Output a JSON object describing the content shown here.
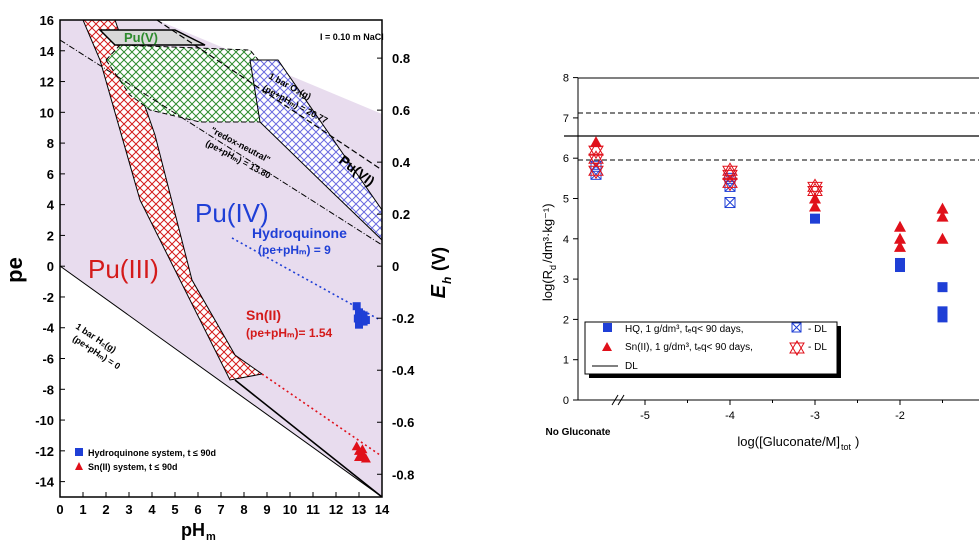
{
  "chart_data": [
    {
      "type": "scatter",
      "title": "",
      "xlabel": "pH",
      "xlabel_sub": "m",
      "ylabel": "pe",
      "y2label": "E",
      "y2label_sub": "h",
      "y2label_unit": "(V)",
      "xlim": [
        0,
        14
      ],
      "ylim": [
        -15,
        16
      ],
      "x_ticks": [
        "0",
        "1",
        "2",
        "3",
        "4",
        "5",
        "6",
        "7",
        "8",
        "9",
        "10",
        "11",
        "12",
        "13",
        "14"
      ],
      "y_ticks": [
        "16",
        "14",
        "12",
        "10",
        "8",
        "6",
        "4",
        "2",
        "0",
        "-2",
        "-4",
        "-6",
        "-8",
        "-10",
        "-12",
        "-14"
      ],
      "y2_ticks": [
        "0.8",
        "0.6",
        "0.4",
        "0.2",
        "0",
        "-0.2",
        "-0.4",
        "-0.6",
        "-0.8"
      ],
      "annotations": {
        "ionic_strength": "I = 0.10 m NaCl",
        "puv": "Pu(V)",
        "puvi": "Pu(VI)",
        "puiv": "Pu(IV)",
        "puiii": "Pu(III)",
        "o2_line": "1 bar O₂(g)",
        "o2_eq": "(pe+pHₘ) = 20.77",
        "redox": "\"redox-neutral\"",
        "redox_eq": "(pe+pHₘ) = 13.80",
        "hq": "Hydroquinone",
        "hq_eq": "(pe+pHₘ) = 9",
        "sn": "Sn(II)",
        "sn_eq": "(pe+pHₘ)= 1.54",
        "h2_line": "1 bar H₂(g)",
        "h2_eq": "(pe+pHₘ) = 0"
      },
      "legend": [
        "Hydroquinone system, t ≤ 90d",
        "Sn(II) system, t ≤ 90d"
      ],
      "series": [
        {
          "name": "Hydroquinone system, t ≤ 90d",
          "marker": "square",
          "color": "#1f3fd6",
          "points": [
            [
              12.9,
              -2.6
            ],
            [
              13.0,
              -3.0
            ],
            [
              13.1,
              -3.3
            ],
            [
              13.2,
              -3.6
            ],
            [
              13.0,
              -3.8
            ],
            [
              13.2,
              -3.2
            ],
            [
              13.3,
              -3.5
            ],
            [
              12.95,
              -3.4
            ]
          ]
        },
        {
          "name": "Sn(II) system, t ≤ 90d",
          "marker": "triangle",
          "color": "#e0101a",
          "points": [
            [
              12.9,
              -11.7
            ],
            [
              13.0,
              -12.0
            ],
            [
              13.1,
              -12.2
            ],
            [
              13.2,
              -12.3
            ],
            [
              13.3,
              -12.5
            ],
            [
              13.0,
              -12.4
            ],
            [
              13.15,
              -11.9
            ]
          ]
        }
      ]
    },
    {
      "type": "scatter",
      "title": "",
      "xlabel": "log([Gluconate/M]",
      "xlabel_sub": "tot",
      "ylabel": "log(R",
      "ylabel_sub": "d",
      "ylabel_rest": "/dm³·kg⁻¹)",
      "xlim": [
        -5.9,
        -1.2
      ],
      "ylim": [
        0,
        8.5
      ],
      "x_ticks": [
        "-5",
        "-4",
        "-3",
        "-2"
      ],
      "y_ticks": [
        "0",
        "1",
        "2",
        "3",
        "4",
        "5",
        "6",
        "7",
        "8"
      ],
      "no_gluconate_label": "No Gluconate",
      "dl_solid": 6.55,
      "dl_dashed_upper": 7.15,
      "dl_dashed_lower": 5.95,
      "legend": [
        "HQ, 1 g/dm³, tₑq< 90 days,",
        "- DL",
        "Sn(II), 1 g/dm³, tₑq< 90 days,",
        "- DL",
        "DL"
      ],
      "series": [
        {
          "name": "HQ, 1 g/dm³, tₑq< 90 days,",
          "marker": "square",
          "color": "#1f3fd6",
          "points": [
            [
              -3.0,
              4.5
            ],
            [
              -2.0,
              3.4
            ],
            [
              -2.0,
              3.3
            ],
            [
              -1.5,
              2.8
            ],
            [
              -1.5,
              2.2
            ],
            [
              -1.5,
              2.05
            ]
          ]
        },
        {
          "name": "HQ - DL",
          "marker": "boxcross",
          "color": "#1f3fd6",
          "points": [
            [
              -5.5,
              5.6
            ],
            [
              -5.5,
              5.8
            ],
            [
              -4.0,
              4.9
            ],
            [
              -4.0,
              5.3
            ],
            [
              -4.0,
              5.5
            ]
          ]
        },
        {
          "name": "Sn(II), 1 g/dm³, tₑq< 90 days,",
          "marker": "triangle",
          "color": "#e0101a",
          "points": [
            [
              -5.5,
              6.4
            ],
            [
              -3.0,
              4.8
            ],
            [
              -3.0,
              5.0
            ],
            [
              -2.0,
              4.3
            ],
            [
              -2.0,
              4.0
            ],
            [
              -2.0,
              3.8
            ],
            [
              -1.5,
              4.75
            ],
            [
              -1.5,
              4.55
            ],
            [
              -1.5,
              4.0
            ]
          ]
        },
        {
          "name": "Sn(II) - DL",
          "marker": "startri",
          "color": "#e0101a",
          "points": [
            [
              -5.5,
              5.7
            ],
            [
              -5.5,
              6.0
            ],
            [
              -5.5,
              6.2
            ],
            [
              -4.0,
              5.4
            ],
            [
              -4.0,
              5.6
            ],
            [
              -4.0,
              5.7
            ],
            [
              -3.0,
              5.2
            ],
            [
              -3.0,
              5.3
            ]
          ]
        }
      ]
    }
  ]
}
